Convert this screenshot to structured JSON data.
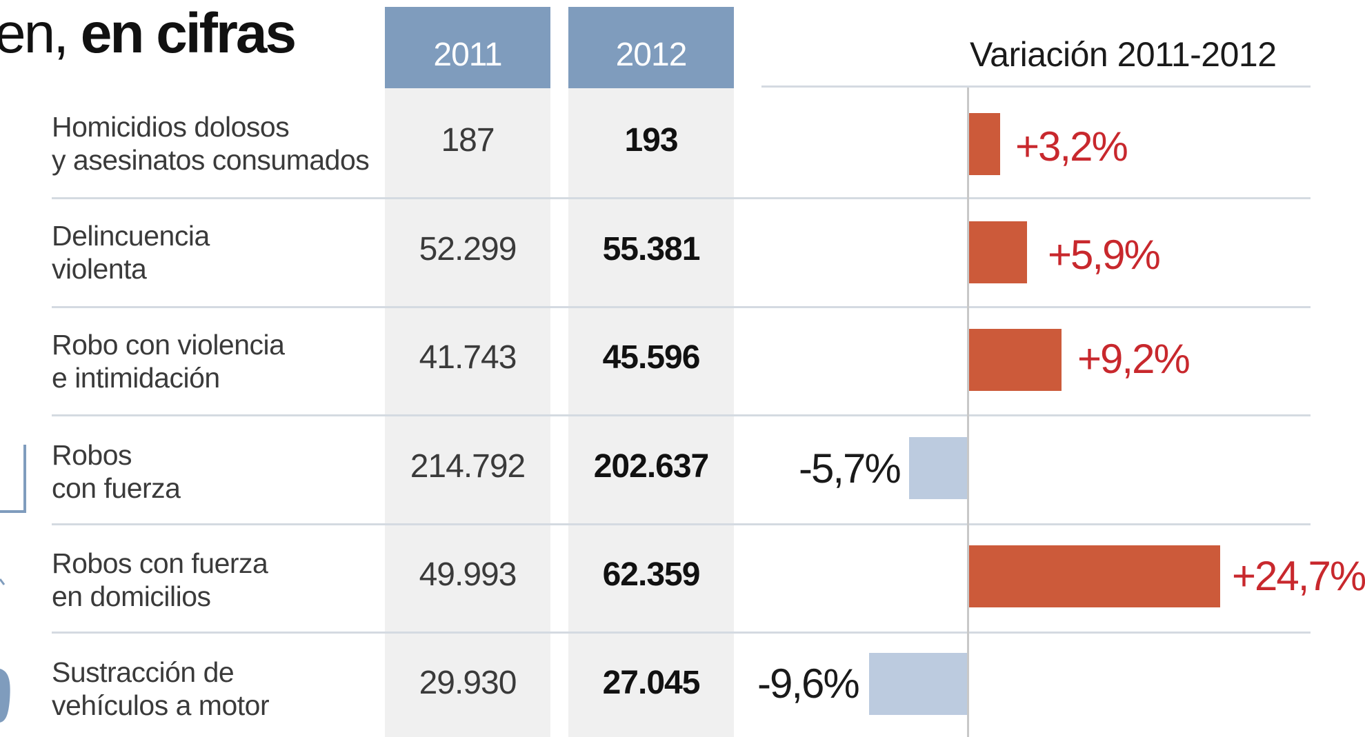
{
  "title": {
    "light": "en, ",
    "bold": "en cifras"
  },
  "columns": [
    "2011",
    "2012"
  ],
  "variation_header": "Variación 2011-2012",
  "rows": [
    {
      "label_lines": [
        "Homicidios dolosos",
        "y asesinatos consumados"
      ],
      "v2011": "187",
      "v2012": "193",
      "pct_label": "+3,2%"
    },
    {
      "label_lines": [
        "Delincuencia",
        "violenta"
      ],
      "v2011": "52.299",
      "v2012": "55.381",
      "pct_label": "+5,9%"
    },
    {
      "label_lines": [
        "Robo con violencia",
        "e intimidación"
      ],
      "v2011": "41.743",
      "v2012": "45.596",
      "pct_label": "+9,2%"
    },
    {
      "label_lines": [
        "Robos",
        "con fuerza"
      ],
      "v2011": "214.792",
      "v2012": "202.637",
      "pct_label": "-5,7%"
    },
    {
      "label_lines": [
        "Robos con fuerza",
        "en domicilios"
      ],
      "v2011": "49.993",
      "v2012": "62.359",
      "pct_label": "+24,7%"
    },
    {
      "label_lines": [
        "Sustracción de",
        "vehículos a motor"
      ],
      "v2011": "29.930",
      "v2012": "27.045",
      "pct_label": "-9,6%"
    }
  ],
  "colors": {
    "header_blue": "#7f9cbd",
    "increase_bar": "#cc5a3a",
    "decrease_bar": "#bccbdf",
    "increase_text": "#c8282d",
    "column_bg": "#f0f0f0"
  },
  "chart_data": {
    "type": "bar",
    "orientation": "horizontal",
    "categories": [
      "Homicidios dolosos y asesinatos consumados",
      "Delincuencia violenta",
      "Robo con violencia e intimidación",
      "Robos con fuerza",
      "Robos con fuerza en domicilios",
      "Sustracción de vehículos a motor"
    ],
    "values": [
      3.2,
      5.9,
      9.2,
      -5.7,
      24.7,
      -9.6
    ],
    "title": "Variación 2011-2012",
    "xlabel": "",
    "ylabel": "",
    "grid": false,
    "legend": "none"
  }
}
